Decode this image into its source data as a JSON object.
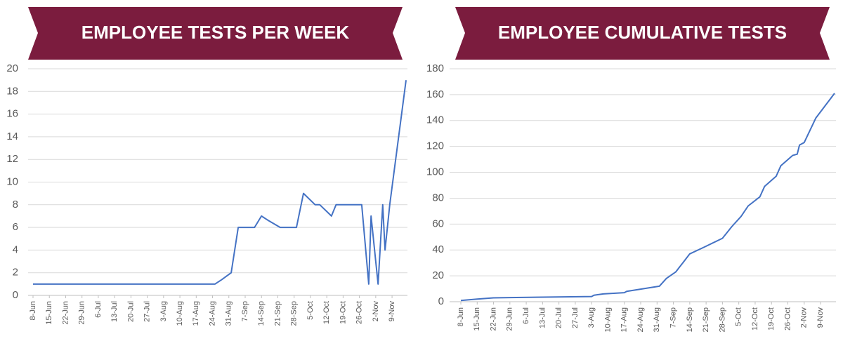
{
  "chart_data": [
    {
      "type": "line",
      "title": "EMPLOYEE TESTS PER WEEK",
      "x": [
        "8-Jun",
        "25-Aug",
        "28-Aug",
        "1-Sep",
        "4-Sep",
        "11-Sep",
        "14-Sep",
        "17-Sep",
        "22-Sep",
        "29-Sep",
        "2-Oct",
        "7-Oct",
        "9-Oct",
        "14-Oct",
        "16-Oct",
        "27-Oct",
        "30-Oct",
        "31-Oct",
        "3-Nov",
        "5-Nov",
        "6-Nov",
        "8-Nov",
        "15-Nov"
      ],
      "series": [
        {
          "color": "#4472c4",
          "values": [
            1,
            1,
            1.4,
            2,
            6,
            6,
            7,
            6.6,
            6,
            6,
            9,
            8,
            8,
            7,
            8,
            8,
            1,
            7,
            1,
            8,
            4,
            8,
            19
          ]
        }
      ],
      "xlim": [
        "8-Jun",
        "15-Nov"
      ],
      "xticks": [
        "8-Jun",
        "15-Jun",
        "22-Jun",
        "29-Jun",
        "6-Jul",
        "13-Jul",
        "20-Jul",
        "27-Jul",
        "3-Aug",
        "10-Aug",
        "17-Aug",
        "24-Aug",
        "31-Aug",
        "7-Sep",
        "14-Sep",
        "21-Sep",
        "28-Sep",
        "5-Oct",
        "12-Oct",
        "19-Oct",
        "26-Oct",
        "2-Nov",
        "9-Nov"
      ],
      "ylim": [
        0,
        20
      ],
      "yticks": [
        0,
        2,
        4,
        6,
        8,
        10,
        12,
        14,
        16,
        18,
        20
      ],
      "grid": true
    },
    {
      "type": "line",
      "title": "EMPLOYEE CUMULATIVE TESTS",
      "x": [
        "8-Jun",
        "15-Jun",
        "22-Jun",
        "29-Jun",
        "3-Aug",
        "4-Aug",
        "8-Aug",
        "17-Aug",
        "18-Aug",
        "1-Sep",
        "4-Sep",
        "8-Sep",
        "11-Sep",
        "14-Sep",
        "20-Sep",
        "28-Sep",
        "2-Oct",
        "6-Oct",
        "9-Oct",
        "14-Oct",
        "16-Oct",
        "21-Oct",
        "23-Oct",
        "28-Oct",
        "30-Oct",
        "31-Oct",
        "2-Nov",
        "7-Nov",
        "15-Nov"
      ],
      "series": [
        {
          "color": "#4472c4",
          "values": [
            1,
            2,
            3,
            3.2,
            4,
            5,
            6,
            7,
            8,
            12,
            18,
            23,
            30,
            37,
            42,
            49,
            58,
            66,
            74,
            81,
            89,
            97,
            105,
            113,
            114,
            121,
            123,
            142,
            161
          ]
        }
      ],
      "xlim": [
        "8-Jun",
        "15-Nov"
      ],
      "xticks": [
        "8-Jun",
        "15-Jun",
        "22-Jun",
        "29-Jun",
        "6-Jul",
        "13-Jul",
        "20-Jul",
        "27-Jul",
        "3-Aug",
        "10-Aug",
        "17-Aug",
        "24-Aug",
        "31-Aug",
        "7-Sep",
        "14-Sep",
        "21-Sep",
        "28-Sep",
        "5-Oct",
        "12-Oct",
        "19-Oct",
        "26-Oct",
        "2-Nov",
        "9-Nov"
      ],
      "ylim": [
        0,
        180
      ],
      "yticks": [
        0,
        20,
        40,
        60,
        80,
        100,
        120,
        140,
        160,
        180
      ],
      "grid": true
    }
  ]
}
